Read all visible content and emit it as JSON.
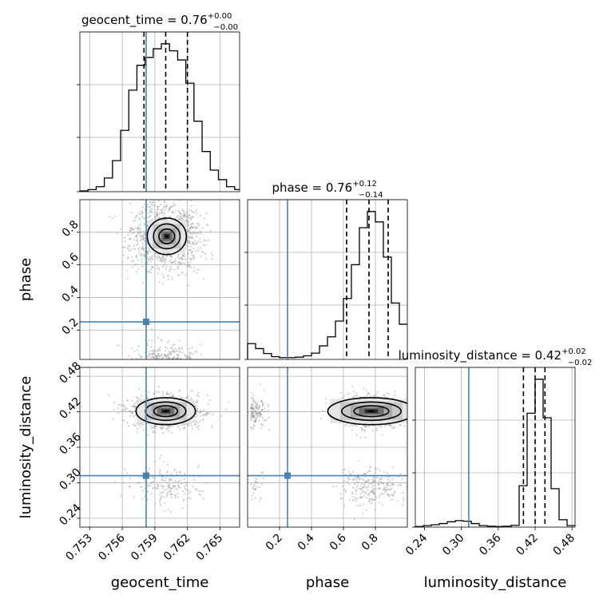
{
  "chart_data": {
    "type": "corner",
    "parameters": [
      "geocent_time",
      "phase",
      "luminosity_distance"
    ],
    "truths": {
      "geocent_time": 0.7582,
      "phase": 0.25,
      "luminosity_distance": 0.312
    },
    "colors": {
      "truth": "#4682b4",
      "hist": "#000000",
      "grid": "#b0b0b0",
      "points": "#9a9a9a"
    },
    "panels": [
      {
        "id": "hist-geocent_time",
        "kind": "hist1d",
        "param": "geocent_time",
        "title_name": "geocent_time",
        "title_value": "0.76",
        "title_plus": "+0.00",
        "title_minus": "−0.00",
        "xlim": [
          0.7521,
          0.7668
        ],
        "xticks": [
          0.753,
          0.756,
          0.759,
          0.762,
          0.765
        ],
        "quantiles": [
          0.758,
          0.76,
          0.762
        ],
        "bins": [
          0.7521,
          0.75285,
          0.7536,
          0.75435,
          0.7551,
          0.75585,
          0.7566,
          0.75735,
          0.7581,
          0.75885,
          0.7596,
          0.76035,
          0.7611,
          0.76185,
          0.7626,
          0.76335,
          0.7641,
          0.76485,
          0.7656,
          0.76635,
          0.7668
        ],
        "counts": [
          2,
          5,
          12,
          33,
          75,
          148,
          245,
          305,
          324,
          345,
          357,
          340,
          318,
          262,
          170,
          97,
          52,
          29,
          12,
          5
        ]
      },
      {
        "id": "hist-phase",
        "kind": "hist1d",
        "param": "phase",
        "title_name": "phase",
        "title_value": "0.76",
        "title_plus": "+0.12",
        "title_minus": "−0.14",
        "xlim": [
          0.0,
          1.0
        ],
        "xticks": [
          0.2,
          0.4,
          0.6,
          0.8
        ],
        "quantiles": [
          0.62,
          0.76,
          0.88
        ],
        "bins": [
          0.0,
          0.05,
          0.1,
          0.15,
          0.2,
          0.25,
          0.3,
          0.35,
          0.4,
          0.45,
          0.5,
          0.55,
          0.6,
          0.65,
          0.7,
          0.75,
          0.8,
          0.85,
          0.9,
          0.95,
          1.0
        ],
        "counts": [
          35,
          24,
          13,
          6,
          4,
          4,
          5,
          8,
          14,
          30,
          50,
          85,
          135,
          210,
          292,
          328,
          305,
          227,
          125,
          78
        ]
      },
      {
        "id": "hist-luminosity_distance",
        "kind": "hist1d",
        "param": "luminosity_distance",
        "title_name": "luminosity_distance",
        "title_value": "0.42",
        "title_plus": "+0.02",
        "title_minus": "−0.02",
        "xlim": [
          0.225,
          0.485
        ],
        "xticks": [
          0.24,
          0.3,
          0.36,
          0.42,
          0.48
        ],
        "quantiles": [
          0.401,
          0.42,
          0.436
        ],
        "bins": [
          0.225,
          0.238,
          0.251,
          0.264,
          0.277,
          0.29,
          0.303,
          0.316,
          0.329,
          0.342,
          0.355,
          0.368,
          0.381,
          0.394,
          0.407,
          0.42,
          0.433,
          0.446,
          0.459,
          0.472,
          0.485
        ],
        "counts": [
          2,
          5,
          8,
          12,
          18,
          22,
          20,
          12,
          5,
          3,
          2,
          3,
          6,
          140,
          385,
          500,
          370,
          130,
          25,
          5
        ]
      },
      {
        "id": "scatter-phase-geocent_time",
        "kind": "hist2d",
        "x": "geocent_time",
        "y": "phase",
        "xlim": [
          0.7521,
          0.7668
        ],
        "ylim": [
          0.02,
          1.0
        ],
        "yticks": [
          0.2,
          0.4,
          0.6,
          0.8
        ]
      },
      {
        "id": "scatter-luminosity_distance-geocent_time",
        "kind": "hist2d",
        "x": "geocent_time",
        "y": "luminosity_distance",
        "xlim": [
          0.7521,
          0.7668
        ],
        "ylim": [
          0.225,
          0.495
        ],
        "yticks": [
          0.24,
          0.3,
          0.36,
          0.42,
          0.48
        ]
      },
      {
        "id": "scatter-luminosity_distance-phase",
        "kind": "hist2d",
        "x": "phase",
        "y": "luminosity_distance",
        "xlim": [
          0.0,
          1.0
        ],
        "ylim": [
          0.225,
          0.495
        ]
      }
    ],
    "tick_labels": {
      "geocent_time": [
        "0.753",
        "0.756",
        "0.759",
        "0.762",
        "0.765"
      ],
      "phase": [
        "0.2",
        "0.4",
        "0.6",
        "0.8"
      ],
      "luminosity_distance": [
        "0.24",
        "0.30",
        "0.36",
        "0.42",
        "0.48"
      ]
    },
    "axis_labels": {
      "x": [
        "geocent_time",
        "phase",
        "luminosity_distance"
      ],
      "y": [
        "phase",
        "luminosity_distance"
      ]
    },
    "grid": true
  }
}
